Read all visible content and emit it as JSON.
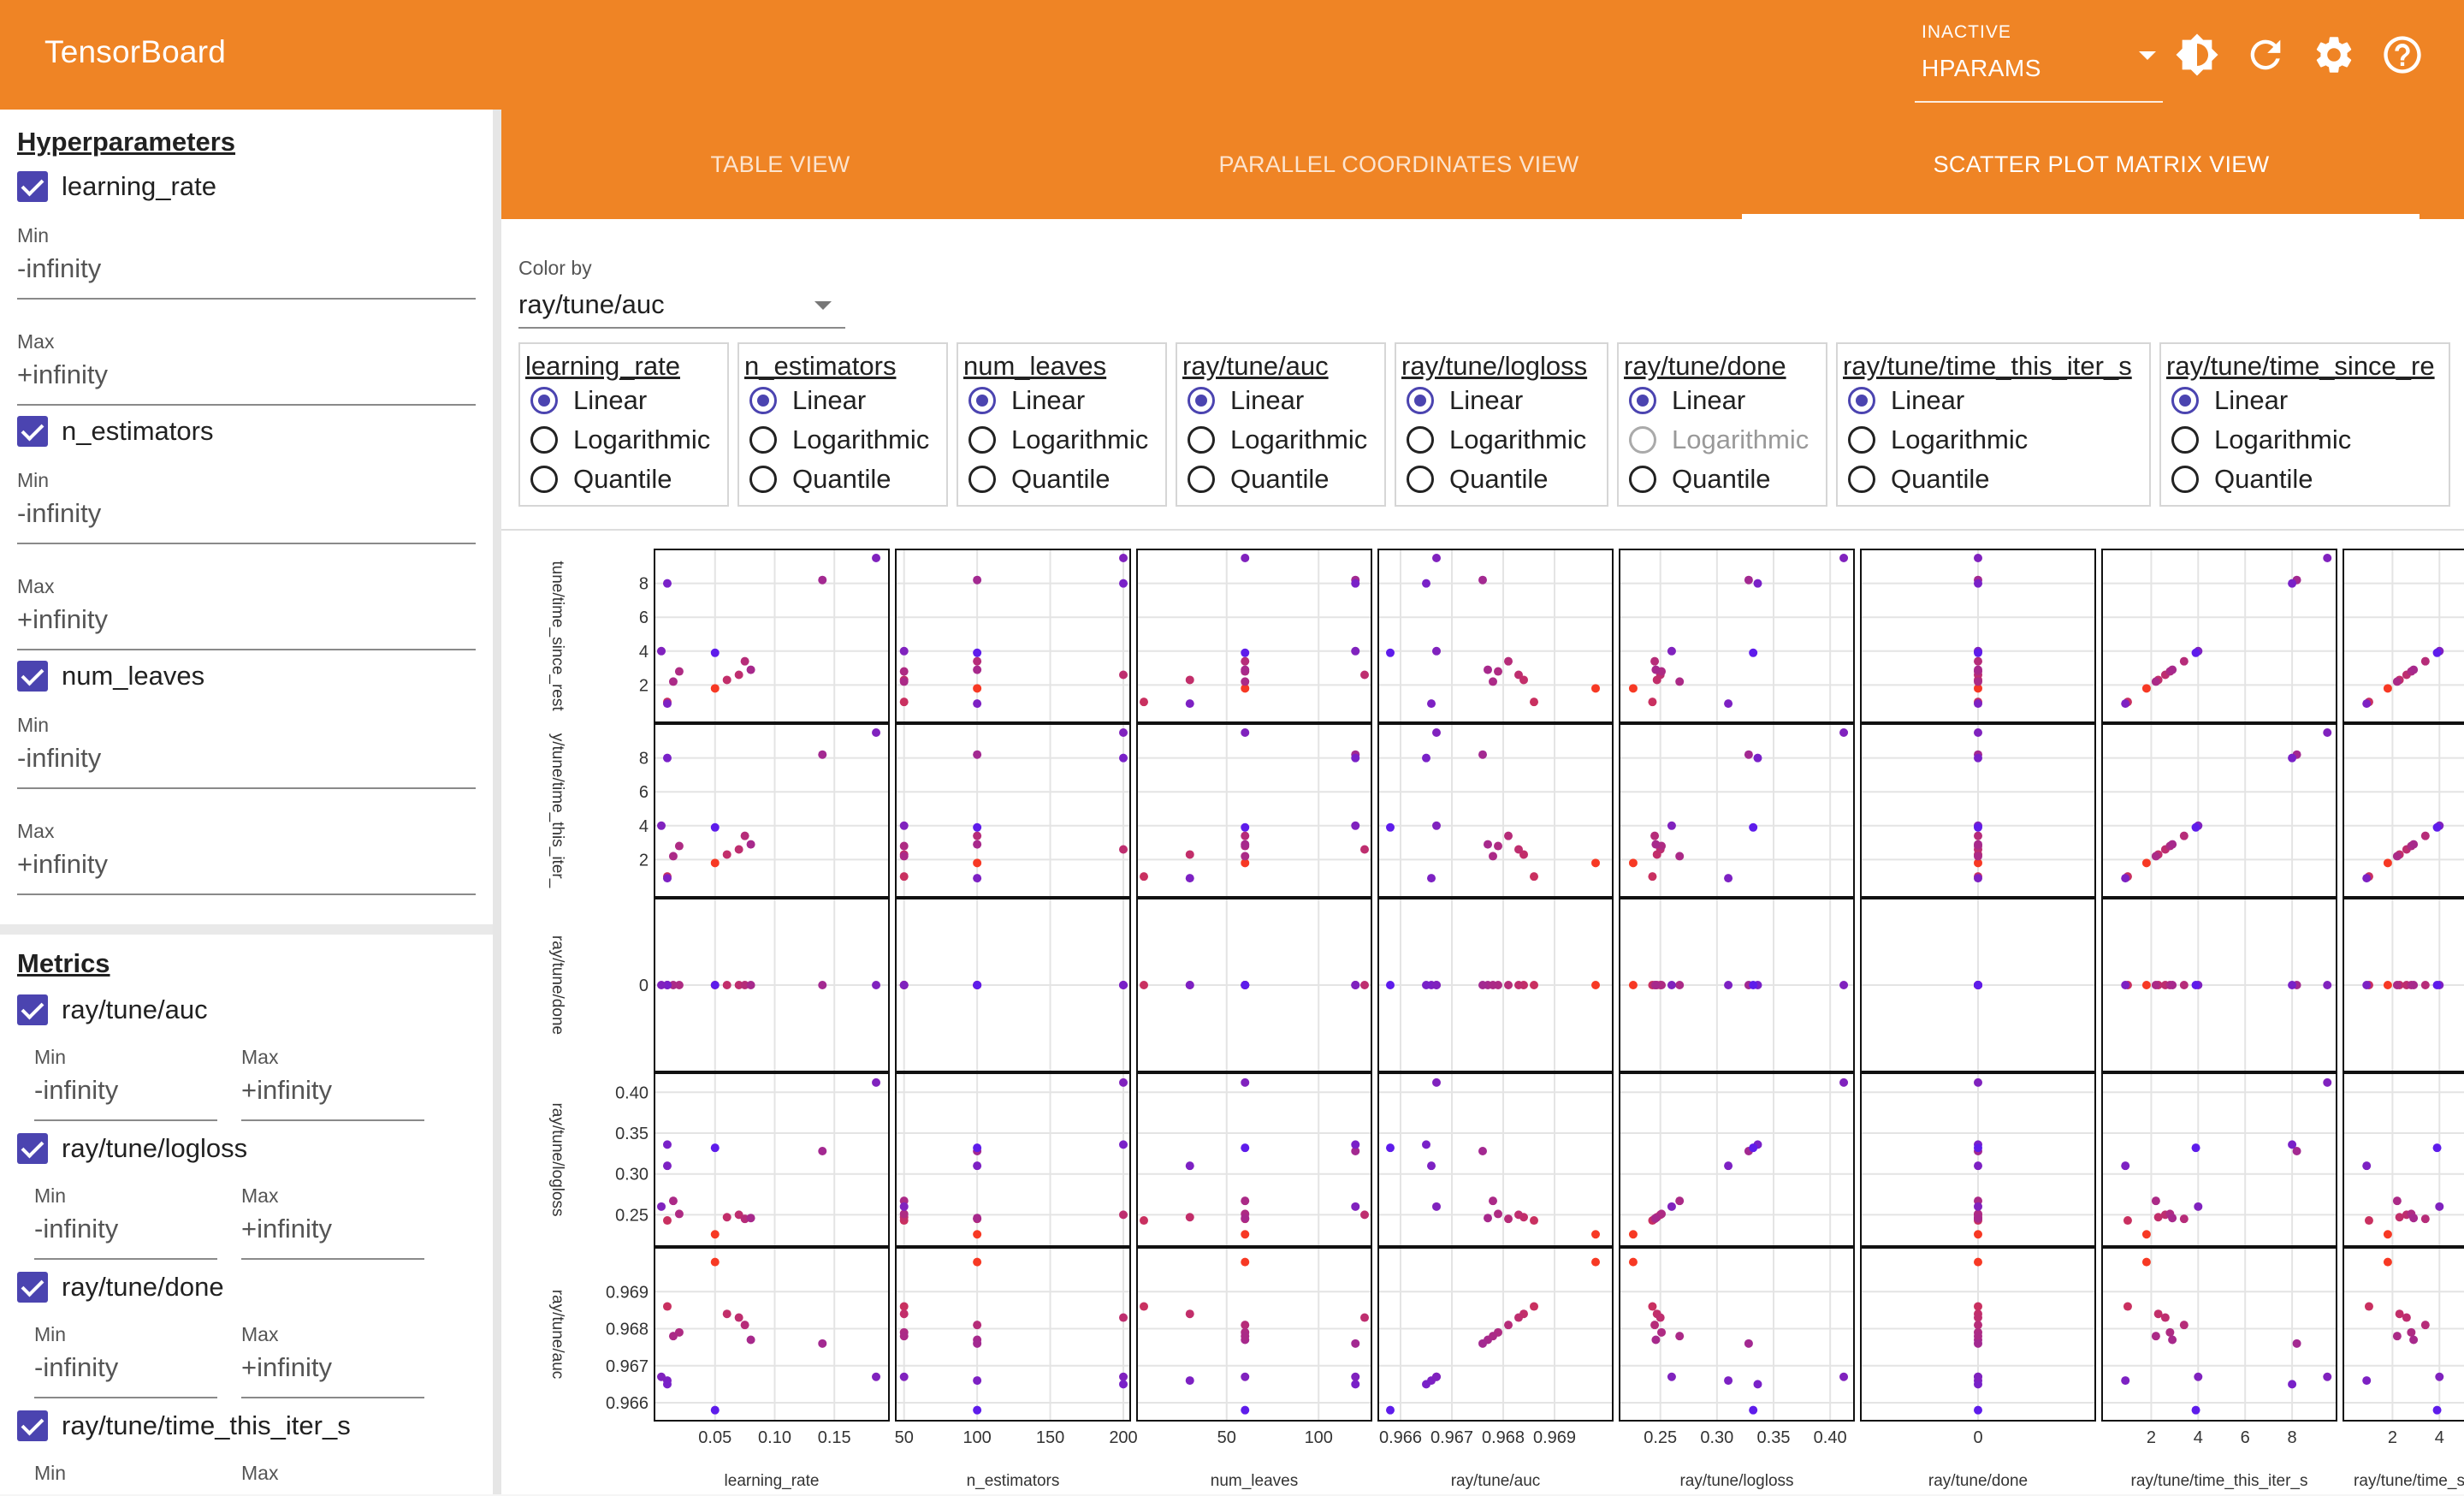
{
  "app": {
    "title": "TensorBoard"
  },
  "header": {
    "run_selector": {
      "label": "INACTIVE",
      "value": "HPARAMS"
    },
    "icons": [
      "brightness-icon",
      "refresh-icon",
      "settings-icon",
      "help-icon"
    ]
  },
  "sidebar": {
    "hyperparameters_title": "Hyperparameters",
    "metrics_title": "Metrics",
    "min_label": "Min",
    "max_label": "Max",
    "min_value": "-infinity",
    "max_value": "+infinity",
    "hparams": [
      {
        "name": "learning_rate",
        "checked": true
      },
      {
        "name": "n_estimators",
        "checked": true
      },
      {
        "name": "num_leaves",
        "checked": true
      }
    ],
    "metrics": [
      {
        "name": "ray/tune/auc",
        "checked": true
      },
      {
        "name": "ray/tune/logloss",
        "checked": true
      },
      {
        "name": "ray/tune/done",
        "checked": true
      },
      {
        "name": "ray/tune/time_this_iter_s",
        "checked": true
      }
    ]
  },
  "tabs": [
    {
      "label": "TABLE VIEW",
      "active": false
    },
    {
      "label": "PARALLEL COORDINATES VIEW",
      "active": false
    },
    {
      "label": "SCATTER PLOT MATRIX VIEW",
      "active": true
    }
  ],
  "color_by": {
    "label": "Color by",
    "value": "ray/tune/auc"
  },
  "scale_options": [
    "Linear",
    "Logarithmic",
    "Quantile"
  ],
  "scales": [
    {
      "name": "learning_rate",
      "selected": "Linear",
      "disabled": []
    },
    {
      "name": "n_estimators",
      "selected": "Linear",
      "disabled": []
    },
    {
      "name": "num_leaves",
      "selected": "Linear",
      "disabled": []
    },
    {
      "name": "ray/tune/auc",
      "selected": "Linear",
      "disabled": []
    },
    {
      "name": "ray/tune/logloss",
      "selected": "Linear",
      "disabled": []
    },
    {
      "name": "ray/tune/done",
      "selected": "Linear",
      "disabled": [
        "Logarithmic"
      ]
    },
    {
      "name": "ray/tune/time_this_iter_s",
      "selected": "Linear",
      "disabled": []
    },
    {
      "name": "ray/tune/time_since_re",
      "selected": "Linear",
      "disabled": []
    }
  ],
  "colors": {
    "accent": "#ef8425",
    "primary": "#4b44b0",
    "low": "#5a1bf0",
    "high": "#ff3a1a"
  },
  "chart_data": {
    "type": "scatter",
    "columns": [
      {
        "name": "learning_rate",
        "ticks": [
          "0.05",
          "0.10",
          "0.15"
        ],
        "tick_values": [
          0.05,
          0.1,
          0.15
        ],
        "range": [
          0.005,
          0.19
        ]
      },
      {
        "name": "n_estimators",
        "ticks": [
          "50",
          "100",
          "150",
          "200"
        ],
        "tick_values": [
          50,
          100,
          150,
          200
        ],
        "range": [
          49,
          200
        ]
      },
      {
        "name": "num_leaves",
        "ticks": [
          "50",
          "100"
        ],
        "tick_values": [
          50,
          100
        ],
        "range": [
          5,
          125
        ]
      },
      {
        "name": "ray/tune/auc",
        "ticks": [
          "0.966",
          "0.967",
          "0.968",
          "0.969"
        ],
        "tick_values": [
          0.966,
          0.967,
          0.968,
          0.969
        ],
        "range": [
          0.9657,
          0.97
        ]
      },
      {
        "name": "ray/tune/logloss",
        "ticks": [
          "0.25",
          "0.30",
          "0.35",
          "0.40"
        ],
        "tick_values": [
          0.25,
          0.3,
          0.35,
          0.4
        ],
        "range": [
          0.22,
          0.415
        ]
      },
      {
        "name": "ray/tune/done",
        "ticks": [
          "0"
        ],
        "tick_values": [
          0
        ],
        "range": [
          -1,
          1
        ]
      },
      {
        "name": "ray/tune/time_this_iter_s",
        "ticks": [
          "2",
          "4",
          "6",
          "8"
        ],
        "tick_values": [
          2,
          4,
          6,
          8
        ],
        "range": [
          0.2,
          9.6
        ]
      },
      {
        "name": "ray/tune/time_s",
        "ticks": [
          "2",
          "4"
        ],
        "tick_values": [
          2,
          4
        ],
        "range": [
          0.2,
          9.6
        ]
      }
    ],
    "rows": [
      {
        "name": "ray/tune/time_since_rest",
        "label": "tune/time_since_rest",
        "col": 7,
        "ticks": [
          "2",
          "4",
          "6",
          "8"
        ],
        "tick_values": [
          2,
          4,
          6,
          8
        ],
        "range": [
          0.2,
          9.6
        ]
      },
      {
        "name": "ray/tune/time_this_iter_s",
        "label": "y/tune/time_this_iter_",
        "col": 6,
        "ticks": [
          "2",
          "4",
          "6",
          "8"
        ],
        "tick_values": [
          2,
          4,
          6,
          8
        ],
        "range": [
          0.2,
          9.6
        ]
      },
      {
        "name": "ray/tune/done",
        "label": "ray/tune/done",
        "col": 5,
        "ticks": [
          "0"
        ],
        "tick_values": [
          0
        ],
        "range": [
          -1,
          1
        ]
      },
      {
        "name": "ray/tune/logloss",
        "label": "ray/tune/logloss",
        "col": 4,
        "ticks": [
          "0.25",
          "0.30",
          "0.35",
          "0.40"
        ],
        "tick_values": [
          0.25,
          0.3,
          0.35,
          0.4
        ],
        "range": [
          0.22,
          0.415
        ]
      },
      {
        "name": "ray/tune/auc",
        "label": "ray/tune/auc",
        "col": 3,
        "ticks": [
          "0.966",
          "0.967",
          "0.968",
          "0.969"
        ],
        "tick_values": [
          0.966,
          0.967,
          0.968,
          0.969
        ],
        "range": [
          0.9657,
          0.97
        ]
      }
    ],
    "trials": [
      [
        0.05,
        100,
        60,
        0.9698,
        0.226,
        0,
        1.8,
        1.8
      ],
      [
        0.01,
        50,
        5,
        0.9686,
        0.243,
        0,
        1.0,
        1.0
      ],
      [
        0.06,
        50,
        30,
        0.9684,
        0.247,
        0,
        2.3,
        2.3
      ],
      [
        0.07,
        200,
        125,
        0.9683,
        0.25,
        0,
        2.6,
        2.6
      ],
      [
        0.075,
        100,
        60,
        0.9681,
        0.245,
        0,
        3.4,
        3.4
      ],
      [
        0.02,
        50,
        60,
        0.9679,
        0.251,
        0,
        2.8,
        2.8
      ],
      [
        0.08,
        100,
        60,
        0.9677,
        0.246,
        0,
        2.9,
        2.9
      ],
      [
        0.015,
        50,
        60,
        0.9678,
        0.267,
        0,
        2.2,
        2.2
      ],
      [
        0.14,
        100,
        120,
        0.9676,
        0.328,
        0,
        8.2,
        8.2
      ],
      [
        0.01,
        100,
        30,
        0.9666,
        0.31,
        0,
        0.9,
        0.9
      ],
      [
        0.185,
        200,
        60,
        0.9667,
        0.412,
        0,
        9.5,
        9.5
      ],
      [
        0.01,
        200,
        120,
        0.9665,
        0.336,
        0,
        8.0,
        8.0
      ],
      [
        0.005,
        50,
        120,
        0.9667,
        0.26,
        0,
        4.0,
        4.0
      ],
      [
        0.05,
        100,
        60,
        0.9658,
        0.332,
        0,
        3.9,
        3.9
      ]
    ]
  }
}
